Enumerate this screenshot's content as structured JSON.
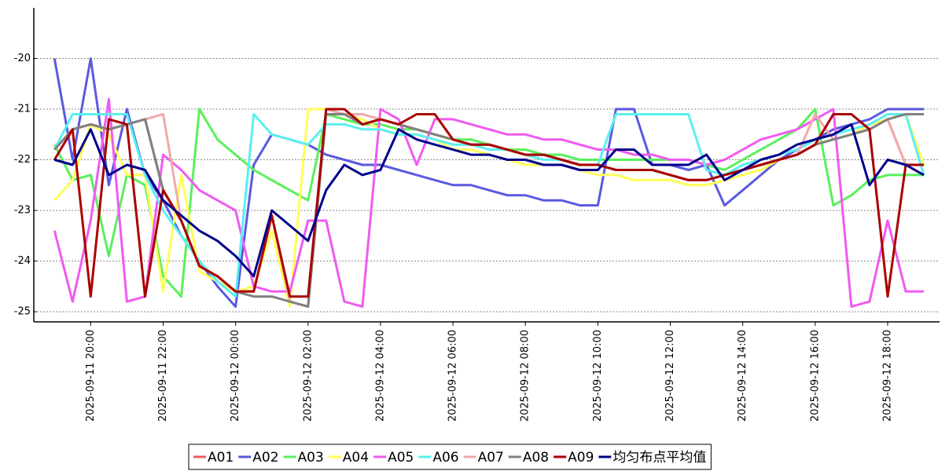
{
  "chart_data": {
    "type": "line",
    "x": [
      "2025-09-11 19:00",
      "2025-09-11 19:30",
      "2025-09-11 20:00",
      "2025-09-11 20:30",
      "2025-09-11 21:00",
      "2025-09-11 21:30",
      "2025-09-11 22:00",
      "2025-09-11 22:30",
      "2025-09-11 23:00",
      "2025-09-11 23:30",
      "2025-09-12 00:00",
      "2025-09-12 00:30",
      "2025-09-12 01:00",
      "2025-09-12 01:30",
      "2025-09-12 02:00",
      "2025-09-12 02:30",
      "2025-09-12 03:00",
      "2025-09-12 03:30",
      "2025-09-12 04:00",
      "2025-09-12 04:30",
      "2025-09-12 05:00",
      "2025-09-12 05:30",
      "2025-09-12 06:00",
      "2025-09-12 06:30",
      "2025-09-12 07:00",
      "2025-09-12 07:30",
      "2025-09-12 08:00",
      "2025-09-12 08:30",
      "2025-09-12 09:00",
      "2025-09-12 09:30",
      "2025-09-12 10:00",
      "2025-09-12 10:30",
      "2025-09-12 11:00",
      "2025-09-12 11:30",
      "2025-09-12 12:00",
      "2025-09-12 12:30",
      "2025-09-12 13:00",
      "2025-09-12 13:30",
      "2025-09-12 14:00",
      "2025-09-12 14:30",
      "2025-09-12 15:00",
      "2025-09-12 15:30",
      "2025-09-12 16:00",
      "2025-09-12 16:30",
      "2025-09-12 17:00",
      "2025-09-12 17:30",
      "2025-09-12 18:00",
      "2025-09-12 18:30",
      "2025-09-12 19:00"
    ],
    "series": [
      {
        "name": "A01",
        "color": "#f05a5a",
        "values": [
          -21.8,
          -21.4,
          -21.3,
          -21.4,
          -21.3,
          -21.2,
          -22.6,
          -23.2,
          -24.1,
          -24.3,
          -24.6,
          -24.6,
          -23.1,
          -24.8,
          -24.9,
          -21,
          -21,
          -21.3,
          -21.2,
          -21.3,
          -21.4,
          -21.5,
          -21.6,
          -21.7,
          -21.7,
          -21.8,
          -21.9,
          -21.9,
          -22,
          -22.1,
          -22.1,
          -22.2,
          -22.2,
          -22.2,
          -22.3,
          -22.4,
          -22.4,
          -22.3,
          -22.2,
          -22.1,
          -22,
          -21.9,
          -21.7,
          -21.6,
          -21.5,
          -21.4,
          -21.2,
          -22.1,
          -22.1
        ]
      },
      {
        "name": "A02",
        "color": "#5a5ae0",
        "values": [
          -20,
          -22,
          -20,
          -22.5,
          -21,
          -22.3,
          -22.8,
          -23.5,
          -24,
          -24.5,
          -24.9,
          -22.1,
          -21.5,
          -21.6,
          -21.7,
          -21.9,
          -22,
          -22.1,
          -22.1,
          -22.2,
          -22.3,
          -22.4,
          -22.5,
          -22.5,
          -22.6,
          -22.7,
          -22.7,
          -22.8,
          -22.8,
          -22.9,
          -22.9,
          -21,
          -21,
          -22.1,
          -22.1,
          -22.2,
          -22.1,
          -22.9,
          -22.6,
          -22.3,
          -22,
          -21.8,
          -21.6,
          -21.4,
          -21.3,
          -21.2,
          -21,
          -21,
          -21
        ]
      },
      {
        "name": "A03",
        "color": "#5af05a",
        "values": [
          -21.7,
          -22.4,
          -22.3,
          -23.9,
          -22.3,
          -22.5,
          -24.3,
          -24.7,
          -21,
          -21.6,
          -21.9,
          -22.2,
          -22.4,
          -22.6,
          -22.8,
          -21.1,
          -21.2,
          -21.3,
          -21.3,
          -21.4,
          -21.4,
          -21.5,
          -21.6,
          -21.6,
          -21.7,
          -21.8,
          -21.8,
          -21.9,
          -21.9,
          -22,
          -22,
          -22,
          -22,
          -22,
          -22,
          -22,
          -22.1,
          -22.2,
          -22,
          -21.8,
          -21.6,
          -21.4,
          -21,
          -22.9,
          -22.7,
          -22.4,
          -22.3,
          -22.3,
          -22.3
        ]
      },
      {
        "name": "A04",
        "color": "#ffff5a",
        "values": [
          -22.8,
          -22.4,
          -21.3,
          -21.5,
          -22.3,
          -22.3,
          -24.6,
          -22.3,
          -24.2,
          -24.4,
          -24.6,
          -24.5,
          -23.4,
          -24.9,
          -21,
          -21,
          -21.1,
          -21.2,
          -21.4,
          -21.5,
          -21.5,
          -21.6,
          -21.8,
          -21.8,
          -21.9,
          -22,
          -22.1,
          -22.1,
          -22.1,
          -22.2,
          -22.3,
          -22.3,
          -22.4,
          -22.4,
          -22.4,
          -22.5,
          -22.5,
          -22.4,
          -22.3,
          -22.2,
          -22,
          -21.9,
          -21.7,
          -21.6,
          -21.5,
          -21.3,
          -21.2,
          -21.1,
          -22.1
        ]
      },
      {
        "name": "A05",
        "color": "#f05af0",
        "values": [
          -23.4,
          -24.8,
          -23.2,
          -20.8,
          -24.8,
          -24.7,
          -21.9,
          -22.2,
          -22.6,
          -22.8,
          -23,
          -24.5,
          -24.6,
          -24.6,
          -23.2,
          -23.2,
          -24.8,
          -24.9,
          -21,
          -21.2,
          -22.1,
          -21.2,
          -21.2,
          -21.3,
          -21.4,
          -21.5,
          -21.5,
          -21.6,
          -21.6,
          -21.7,
          -21.8,
          -21.8,
          -21.9,
          -21.9,
          -22,
          -22,
          -22.1,
          -22,
          -21.8,
          -21.6,
          -21.5,
          -21.4,
          -21.2,
          -21,
          -24.9,
          -24.8,
          -23.2,
          -24.6,
          -24.6
        ]
      },
      {
        "name": "A06",
        "color": "#5af0f0",
        "values": [
          -21.8,
          -21.1,
          -21.1,
          -21.1,
          -21.1,
          -22.3,
          -23,
          -23.5,
          -24,
          -24.4,
          -24.7,
          -21.1,
          -21.5,
          -21.6,
          -21.7,
          -21.3,
          -21.3,
          -21.4,
          -21.4,
          -21.5,
          -21.5,
          -21.6,
          -21.7,
          -21.7,
          -21.8,
          -21.8,
          -21.9,
          -22,
          -22,
          -22.1,
          -22.1,
          -21.1,
          -21.1,
          -21.1,
          -21.1,
          -21.1,
          -22.2,
          -22.3,
          -22.1,
          -22,
          -21.9,
          -21.8,
          -21.6,
          -21.5,
          -21.4,
          -21.3,
          -21.1,
          -21.1,
          -22.3
        ]
      },
      {
        "name": "A07",
        "color": "#f0aaaa",
        "values": [
          -21.8,
          -21.4,
          -21.3,
          -21.4,
          -21.3,
          -21.2,
          -21.1,
          -23.2,
          -24.1,
          -24.3,
          -24.6,
          -24.6,
          -23.1,
          -24.8,
          -24.9,
          -21,
          -21.1,
          -21.1,
          -21.2,
          -21.3,
          -21.4,
          -21.5,
          -21.6,
          -21.7,
          -21.7,
          -21.8,
          -21.9,
          -21.9,
          -22,
          -22.1,
          -22.1,
          -22.2,
          -22.2,
          -22.2,
          -22.3,
          -22.4,
          -22.4,
          -22.3,
          -22.2,
          -22.1,
          -22,
          -21.9,
          -21.1,
          -21.6,
          -21.5,
          -21.4,
          -21.2,
          -22.1,
          -22.1
        ]
      },
      {
        "name": "A08",
        "color": "#808080",
        "values": [
          -21.8,
          -21.4,
          -21.3,
          -21.4,
          -21.3,
          -21.2,
          -22.6,
          -23.2,
          -24.1,
          -24.3,
          -24.6,
          -24.7,
          -24.7,
          -24.8,
          -24.9,
          -21.1,
          -21.1,
          -21.3,
          -21.2,
          -21.3,
          -21.4,
          -21.5,
          -21.6,
          -21.7,
          -21.7,
          -21.8,
          -21.9,
          -21.9,
          -22,
          -22.1,
          -22.1,
          -22.2,
          -22.2,
          -22.2,
          -22.3,
          -22.4,
          -22.4,
          -22.3,
          -22.2,
          -22.1,
          -22,
          -21.9,
          -21.7,
          -21.6,
          -21.5,
          -21.4,
          -21.2,
          -21.1,
          -21.1
        ]
      },
      {
        "name": "A09",
        "color": "#aa0000",
        "values": [
          -22,
          -21.4,
          -24.7,
          -21.2,
          -21.3,
          -24.7,
          -22.6,
          -23.2,
          -24.1,
          -24.3,
          -24.6,
          -24.6,
          -23.1,
          -24.7,
          -24.7,
          -21,
          -21,
          -21.3,
          -21.2,
          -21.3,
          -21.1,
          -21.1,
          -21.6,
          -21.7,
          -21.7,
          -21.8,
          -21.9,
          -21.9,
          -22,
          -22.1,
          -22.1,
          -22.2,
          -22.2,
          -22.2,
          -22.3,
          -22.4,
          -22.4,
          -22.3,
          -22.2,
          -22.1,
          -22,
          -21.9,
          -21.7,
          -21.1,
          -21.1,
          -21.4,
          -24.7,
          -22.1,
          -22.1
        ]
      },
      {
        "name": "均匀布点平均值",
        "color": "#00008b",
        "values": [
          -22,
          -22.1,
          -21.4,
          -22.3,
          -22.1,
          -22.2,
          -22.8,
          -23.1,
          -23.4,
          -23.6,
          -23.9,
          -24.3,
          -23,
          -23.3,
          -23.6,
          -22.6,
          -22.1,
          -22.3,
          -22.2,
          -21.4,
          -21.6,
          -21.7,
          -21.8,
          -21.9,
          -21.9,
          -22,
          -22,
          -22.1,
          -22.1,
          -22.2,
          -22.2,
          -21.8,
          -21.8,
          -22.1,
          -22.1,
          -22.1,
          -21.9,
          -22.4,
          -22.2,
          -22,
          -21.9,
          -21.7,
          -21.6,
          -21.5,
          -21.3,
          -22.5,
          -22,
          -22.1,
          -22.3
        ]
      }
    ],
    "xlim": [
      "2025-09-11 18:31",
      "2025-09-12 19:26"
    ],
    "xticks": [
      "2025-09-11 20:00",
      "2025-09-11 22:00",
      "2025-09-12 00:00",
      "2025-09-12 02:00",
      "2025-09-12 04:00",
      "2025-09-12 06:00",
      "2025-09-12 08:00",
      "2025-09-12 10:00",
      "2025-09-12 12:00",
      "2025-09-12 14:00",
      "2025-09-12 16:00",
      "2025-09-12 18:00"
    ],
    "ylim": [
      -25.2,
      -19.0
    ],
    "yticks": [
      -25,
      -24,
      -23,
      -22,
      -21,
      -20
    ],
    "grid": true,
    "legend": "bottom"
  }
}
